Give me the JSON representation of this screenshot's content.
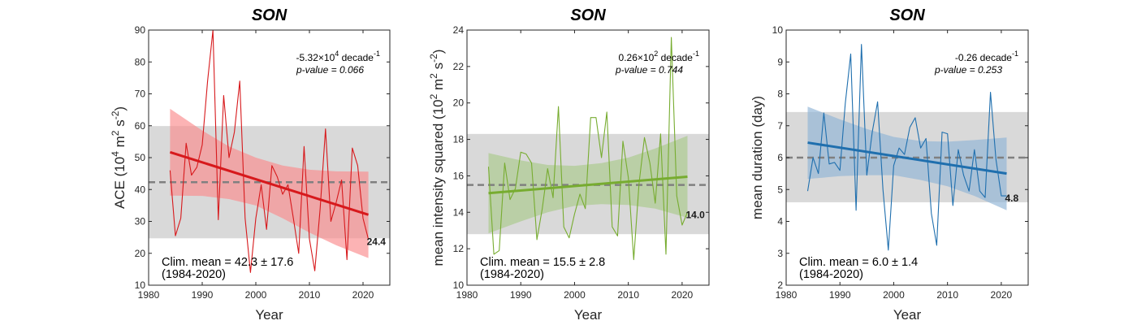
{
  "chart_data": [
    {
      "type": "line",
      "title": "SON",
      "xlabel": "Year",
      "ylabel_parts": {
        "prefix": "ACE (10",
        "exp1": "4",
        "mid": " m",
        "exp2": "2",
        "mid2": " s",
        "exp3": "-2",
        "suffix": ")"
      },
      "xlim": [
        1980,
        2025
      ],
      "ylim": [
        10,
        90
      ],
      "xticks": [
        1980,
        1990,
        2000,
        2010,
        2020
      ],
      "yticks": [
        10,
        20,
        30,
        40,
        50,
        60,
        70,
        80,
        90
      ],
      "color": "#d7191c",
      "band_color": "#fb8a8c",
      "x": [
        1984,
        1985,
        1986,
        1987,
        1988,
        1989,
        1990,
        1991,
        1992,
        1993,
        1994,
        1995,
        1996,
        1997,
        1998,
        1999,
        2000,
        2001,
        2002,
        2003,
        2004,
        2005,
        2006,
        2007,
        2008,
        2009,
        2010,
        2011,
        2012,
        2013,
        2014,
        2015,
        2016,
        2017,
        2018,
        2019,
        2020,
        2021
      ],
      "values": [
        46,
        25.5,
        31,
        54.5,
        44.5,
        47,
        54,
        74,
        90,
        30.5,
        69.5,
        50,
        58,
        74,
        31,
        14,
        31,
        41.5,
        27.5,
        47.5,
        44,
        38.5,
        41.5,
        31,
        20,
        53.5,
        24.5,
        14.5,
        34,
        59,
        30,
        36,
        43,
        18,
        53,
        47.5,
        31,
        24.4
      ],
      "trend": {
        "start": [
          1984,
          51.7
        ],
        "end": [
          2021,
          32.1
        ]
      },
      "confidence_band": {
        "upper": [
          [
            1984,
            65.3
          ],
          [
            1990,
            58.5
          ],
          [
            1995,
            53.5
          ],
          [
            2000,
            50
          ],
          [
            2005,
            47.5
          ],
          [
            2010,
            46.2
          ],
          [
            2015,
            45.7
          ],
          [
            2021,
            45.6
          ]
        ],
        "lower": [
          [
            1984,
            38.1
          ],
          [
            1990,
            38
          ],
          [
            1995,
            37
          ],
          [
            2000,
            35
          ],
          [
            2005,
            31
          ],
          [
            2010,
            26.5
          ],
          [
            2015,
            22.5
          ],
          [
            2021,
            18.5
          ]
        ]
      },
      "clim_mean": 42.3,
      "clim_std": 17.6,
      "clim_band": [
        24.7,
        59.9
      ],
      "trend_annotation": {
        "coef": "-5.32×10",
        "coef_exp": "4",
        "unit": " decade",
        "unit_exp": "-1",
        "pvalue": "p-value = 0.066"
      },
      "clim_annotation": {
        "line1": "Clim. mean = 42.3 ± 17.6",
        "line2": "(1984-2020)"
      },
      "end_label": "24.4"
    },
    {
      "type": "line",
      "title": "SON",
      "xlabel": "Year",
      "ylabel_parts": {
        "prefix": "mean intensity squared (10",
        "exp1": "2",
        "mid": " m",
        "exp2": "2",
        "mid2": " s",
        "exp3": "-2",
        "suffix": ")"
      },
      "xlim": [
        1980,
        2025
      ],
      "ylim": [
        10,
        24
      ],
      "xticks": [
        1980,
        1990,
        2000,
        2010,
        2020
      ],
      "yticks": [
        10,
        12,
        14,
        16,
        18,
        20,
        22,
        24
      ],
      "color": "#77ac30",
      "band_color": "#a9c98a",
      "x": [
        1984,
        1985,
        1986,
        1987,
        1988,
        1989,
        1990,
        1991,
        1992,
        1993,
        1994,
        1995,
        1996,
        1997,
        1998,
        1999,
        2000,
        2001,
        2002,
        2003,
        2004,
        2005,
        2006,
        2007,
        2008,
        2009,
        2010,
        2011,
        2012,
        2013,
        2014,
        2015,
        2016,
        2017,
        2018,
        2019,
        2020,
        2021
      ],
      "values": [
        16.5,
        11.7,
        11.9,
        16.7,
        14.7,
        15.3,
        17.3,
        17.2,
        16.7,
        12.5,
        14.2,
        16.4,
        14.8,
        19.8,
        13.2,
        12.6,
        13.9,
        15.0,
        14.2,
        19.2,
        19.2,
        17.0,
        19.5,
        13.2,
        12.7,
        17.9,
        15.9,
        11.4,
        15.6,
        18.1,
        16.7,
        14.5,
        18.3,
        11.7,
        23.6,
        14.9,
        13.3,
        14.0
      ],
      "trend": {
        "start": [
          1984,
          15.05
        ],
        "end": [
          2021,
          15.95
        ]
      },
      "confidence_band": {
        "upper": [
          [
            1984,
            17.25
          ],
          [
            1990,
            16.85
          ],
          [
            1995,
            16.6
          ],
          [
            2000,
            16.55
          ],
          [
            2005,
            16.7
          ],
          [
            2010,
            17.0
          ],
          [
            2015,
            17.5
          ],
          [
            2021,
            18.2
          ]
        ],
        "lower": [
          [
            1984,
            12.85
          ],
          [
            1990,
            13.5
          ],
          [
            1995,
            14.0
          ],
          [
            2000,
            14.35
          ],
          [
            2005,
            14.45
          ],
          [
            2010,
            14.4
          ],
          [
            2015,
            14.2
          ],
          [
            2021,
            13.7
          ]
        ]
      },
      "clim_mean": 15.5,
      "clim_std": 2.8,
      "clim_band": [
        12.8,
        18.3
      ],
      "trend_annotation": {
        "coef": "0.26×10",
        "coef_exp": "2",
        "unit": " decade",
        "unit_exp": "-1",
        "pvalue": "p-value = 0.744"
      },
      "clim_annotation": {
        "line1": "Clim. mean = 15.5 ± 2.8",
        "line2": "(1984-2020)"
      },
      "end_label": "14.0"
    },
    {
      "type": "line",
      "title": "SON",
      "xlabel": "Year",
      "ylabel_parts": {
        "prefix": "mean duration (day)",
        "exp1": "",
        "mid": "",
        "exp2": "",
        "mid2": "",
        "exp3": "",
        "suffix": ""
      },
      "xlim": [
        1980,
        2025
      ],
      "ylim": [
        2,
        10
      ],
      "xticks": [
        1980,
        1990,
        2000,
        2010,
        2020
      ],
      "yticks": [
        2,
        3,
        4,
        5,
        6,
        7,
        8,
        9,
        10
      ],
      "color": "#1f6fae",
      "band_color": "#8fb3d6",
      "x": [
        1984,
        1985,
        1986,
        1987,
        1988,
        1989,
        1990,
        1991,
        1992,
        1993,
        1994,
        1995,
        1996,
        1997,
        1998,
        1999,
        2000,
        2001,
        2002,
        2003,
        2004,
        2005,
        2006,
        2007,
        2008,
        2009,
        2010,
        2011,
        2012,
        2013,
        2014,
        2015,
        2016,
        2017,
        2018,
        2019,
        2020,
        2021
      ],
      "values": [
        4.95,
        6.0,
        5.5,
        7.4,
        5.8,
        5.85,
        5.6,
        7.7,
        9.25,
        4.35,
        9.55,
        5.45,
        6.8,
        7.75,
        5.0,
        3.1,
        5.75,
        6.3,
        6.1,
        6.95,
        7.25,
        6.3,
        6.6,
        4.25,
        3.25,
        6.8,
        6.75,
        4.5,
        6.25,
        5.45,
        4.95,
        6.25,
        4.95,
        4.75,
        8.05,
        5.95,
        4.8,
        4.8
      ],
      "trend": {
        "start": [
          1984,
          6.47
        ],
        "end": [
          2021,
          5.5
        ]
      },
      "confidence_band": {
        "upper": [
          [
            1984,
            7.6
          ],
          [
            1990,
            7.2
          ],
          [
            1995,
            6.9
          ],
          [
            2000,
            6.65
          ],
          [
            2005,
            6.52
          ],
          [
            2010,
            6.5
          ],
          [
            2015,
            6.55
          ],
          [
            2021,
            6.63
          ]
        ],
        "lower": [
          [
            1984,
            5.33
          ],
          [
            1990,
            5.42
          ],
          [
            1995,
            5.45
          ],
          [
            2000,
            5.45
          ],
          [
            2005,
            5.3
          ],
          [
            2010,
            5.1
          ],
          [
            2015,
            4.8
          ],
          [
            2021,
            4.35
          ]
        ]
      },
      "clim_mean": 6.0,
      "clim_std": 1.4,
      "clim_band": [
        4.6,
        7.43
      ],
      "trend_annotation": {
        "coef": "-0.26",
        "coef_exp": "",
        "unit": " decade",
        "unit_exp": "-1",
        "pvalue": "p-value = 0.253"
      },
      "clim_annotation": {
        "line1": "Clim. mean = 6.0 ± 1.4",
        "line2": "(1984-2020)"
      },
      "end_label": "4.8"
    }
  ]
}
